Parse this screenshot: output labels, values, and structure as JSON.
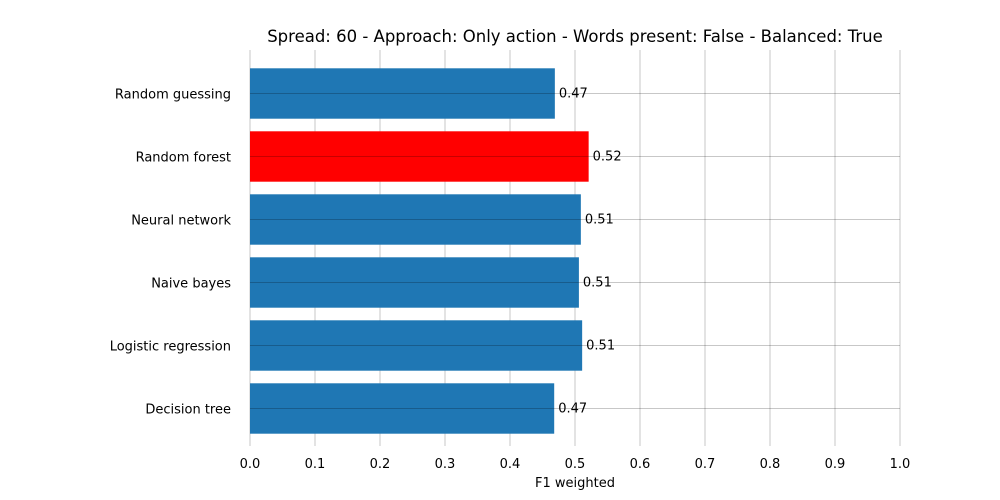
{
  "chart_data": {
    "type": "bar",
    "orientation": "horizontal",
    "title": "Spread: 60 - Approach: Only action - Words present: False - Balanced: True",
    "xlabel": "F1 weighted",
    "ylabel": "",
    "xlim": [
      0,
      1.0
    ],
    "xticks": [
      "0.0",
      "0.1",
      "0.2",
      "0.3",
      "0.4",
      "0.5",
      "0.6",
      "0.7",
      "0.8",
      "0.9",
      "1.0"
    ],
    "grid": true,
    "categories": [
      "Random guessing",
      "Random forest",
      "Neural network",
      "Naive bayes",
      "Logistic regression",
      "Decision tree"
    ],
    "values": [
      0.469,
      0.521,
      0.509,
      0.506,
      0.511,
      0.468
    ],
    "value_labels": [
      "0.47",
      "0.52",
      "0.51",
      "0.51",
      "0.51",
      "0.47"
    ],
    "colors": [
      "#1f77b4",
      "#ff0000",
      "#1f77b4",
      "#1f77b4",
      "#1f77b4",
      "#1f77b4"
    ]
  }
}
